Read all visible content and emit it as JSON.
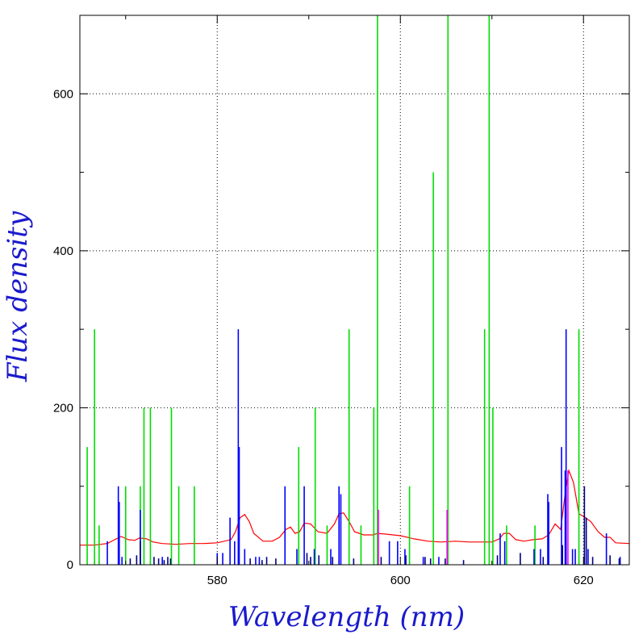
{
  "chart_data": {
    "type": "line",
    "xlabel": "Wavelength (nm)",
    "ylabel": "Flux density",
    "xlim": [
      565,
      625
    ],
    "ylim": [
      0,
      700
    ],
    "grid": true,
    "x_ticks": [
      580,
      600,
      620
    ],
    "y_ticks": [
      0,
      200,
      400,
      600
    ],
    "x_minor_ticks": [
      570,
      590,
      610
    ],
    "y_minor_ticks": [
      100,
      300,
      500
    ],
    "colors": {
      "model_curve": "#ff0000",
      "green_lines": "#00dd00",
      "blue_lines": "#0000ff",
      "navy_lines": "#000080",
      "magenta_lines": "#ff00ff",
      "axis_title": "#1a1acc"
    },
    "series": [
      {
        "style": "curve",
        "color_key": "model_curve",
        "x": [
          565.0,
          566.5,
          568.0,
          568.8,
          569.5,
          570.3,
          571.0,
          571.5,
          572.3,
          573.0,
          574.0,
          575.5,
          577.0,
          578.5,
          580.0,
          581.5,
          582.0,
          582.5,
          583.0,
          583.5,
          584.0,
          585.0,
          586.0,
          586.8,
          587.5,
          588.0,
          588.5,
          589.0,
          589.5,
          590.2,
          591.0,
          592.0,
          592.8,
          593.3,
          593.8,
          594.4,
          595.0,
          596.0,
          597.0,
          597.5,
          598.5,
          600.0,
          601.5,
          603.0,
          604.5,
          606.0,
          607.5,
          609.0,
          610.0,
          610.8,
          611.3,
          611.9,
          612.6,
          613.5,
          614.5,
          615.5,
          616.2,
          616.9,
          617.5,
          618.0,
          618.4,
          618.9,
          619.5,
          620.2,
          620.8,
          621.6,
          622.3,
          622.9,
          623.5,
          625.0
        ],
        "y": [
          25,
          25,
          27,
          32,
          36,
          32,
          31,
          34,
          33,
          29,
          27,
          26,
          27,
          27,
          28,
          32,
          42,
          60,
          64,
          55,
          40,
          30,
          30,
          35,
          45,
          48,
          40,
          42,
          53,
          52,
          42,
          40,
          52,
          65,
          66,
          55,
          42,
          38,
          38,
          40,
          39,
          37,
          33,
          30,
          29,
          30,
          29,
          29,
          29,
          33,
          40,
          40,
          32,
          30,
          32,
          33,
          38,
          52,
          45,
          90,
          120,
          105,
          65,
          60,
          55,
          42,
          35,
          35,
          28,
          27
        ]
      },
      {
        "style": "sticks",
        "color_key": "green_lines",
        "x": [
          565.8,
          566.6,
          567.1,
          570.0,
          571.6,
          572.0,
          572.7,
          575.0,
          575.8,
          577.5,
          588.9,
          590.7,
          592.0,
          594.4,
          595.7,
          597.1,
          597.5,
          601.0,
          603.6,
          605.2,
          609.2,
          609.7,
          610.1,
          611.6,
          614.7,
          619.5
        ],
        "y": [
          150,
          300,
          50,
          100,
          100,
          200,
          200,
          200,
          100,
          100,
          150,
          200,
          50,
          300,
          50,
          200,
          700,
          100,
          500,
          700,
          300,
          700,
          200,
          50,
          50,
          300
        ]
      },
      {
        "style": "sticks",
        "color_key": "blue_lines",
        "x": [
          568.0,
          569.2,
          569.3,
          569.6,
          571.6,
          574.0,
          580.0,
          580.6,
          581.4,
          581.9,
          582.3,
          582.4,
          583.0,
          584.2,
          584.6,
          587.4,
          588.7,
          589.5,
          590.6,
          592.4,
          593.3,
          593.5,
          598.8,
          599.7,
          600.5,
          602.5,
          604.2,
          610.9,
          611.4,
          614.6,
          615.3,
          616.1,
          616.2,
          617.6,
          618.0,
          618.1,
          618.8,
          619.1,
          620.5,
          622.5,
          624.0
        ],
        "y": [
          30,
          100,
          80,
          10,
          70,
          10,
          15,
          15,
          60,
          30,
          300,
          150,
          20,
          10,
          10,
          100,
          20,
          100,
          20,
          20,
          100,
          90,
          30,
          30,
          20,
          10,
          10,
          40,
          30,
          20,
          20,
          90,
          80,
          150,
          120,
          300,
          20,
          20,
          20,
          40,
          10
        ]
      },
      {
        "style": "sticks",
        "color_key": "navy_lines",
        "x": [
          570.5,
          571.2,
          571.6,
          573.1,
          573.6,
          574.2,
          574.6,
          574.9,
          583.6,
          584.9,
          585.4,
          586.4,
          589.8,
          590.2,
          591.1,
          592.6,
          594.9,
          597.9,
          600.6,
          602.7,
          603.3,
          604.9,
          606.9,
          610.6,
          613.1,
          615.6,
          617.7,
          620.1,
          620.3,
          621.0,
          622.9,
          623.9
        ],
        "y": [
          8,
          12,
          30,
          10,
          8,
          6,
          10,
          8,
          8,
          6,
          10,
          8,
          15,
          10,
          12,
          10,
          8,
          10,
          12,
          10,
          8,
          8,
          6,
          12,
          15,
          10,
          25,
          100,
          60,
          10,
          12,
          8
        ]
      },
      {
        "style": "sticks",
        "color_key": "magenta_lines",
        "x": [
          597.6,
          605.1,
          618.3
        ],
        "y": [
          70,
          70,
          120
        ]
      }
    ]
  }
}
